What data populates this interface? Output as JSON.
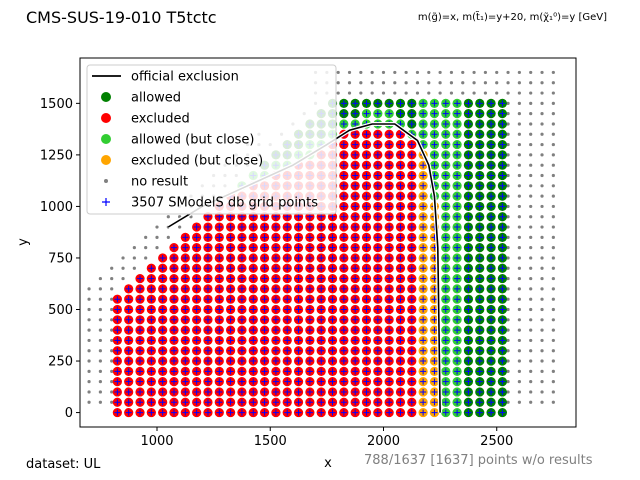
{
  "chart_data": {
    "type": "scatter",
    "title": "CMS-SUS-19-010 T5tctc",
    "subtitle": "m(g̃)=x, m(t̃₁)=y+20, m(χ̃₁⁰)=y [GeV]",
    "xlabel": "x",
    "ylabel": "y",
    "xlim": [
      660,
      2850
    ],
    "ylim": [
      -70,
      1720
    ],
    "xticks": [
      1000,
      1500,
      2000,
      2500
    ],
    "yticks": [
      0,
      250,
      500,
      750,
      1000,
      1250,
      1500
    ],
    "grid": false,
    "legend_position": "top-left",
    "legend": [
      {
        "label": "official exclusion",
        "marker": "line",
        "color": "#000000"
      },
      {
        "label": "allowed",
        "marker": "dot",
        "color": "#008000"
      },
      {
        "label": "excluded",
        "marker": "dot",
        "color": "#ff0000"
      },
      {
        "label": "allowed (but close)",
        "marker": "dot",
        "color": "#32cd32"
      },
      {
        "label": "excluded (but close)",
        "marker": "dot",
        "color": "#ffa500"
      },
      {
        "label": "no result",
        "marker": "small-dot",
        "color": "#808080"
      },
      {
        "label": "3507 SModelS db grid points",
        "marker": "plus",
        "color": "#0000ff"
      }
    ],
    "series": [
      {
        "name": "official exclusion",
        "type": "line",
        "color": "#000000",
        "x": [
          1050,
          1200,
          1400,
          1600,
          1750,
          1850,
          1950,
          2050,
          2150,
          2200,
          2225,
          2240,
          2245,
          2250
        ],
        "y": [
          900,
          1000,
          1100,
          1200,
          1300,
          1370,
          1400,
          1400,
          1320,
          1200,
          1050,
          800,
          400,
          0
        ]
      }
    ],
    "grid_region": {
      "x_min": 825,
      "x_max": 2525,
      "y_min": 0,
      "y_max": 1525,
      "step": 50,
      "diagonal_boundary": "y <= x - 250"
    },
    "no_result_region": {
      "x_min": 700,
      "x_max": 2750,
      "y_min": 50,
      "y_max": 1650,
      "step": 50
    }
  },
  "footer": {
    "dataset": "dataset: UL",
    "missing": "788/1637 [1637] points w/o results"
  }
}
